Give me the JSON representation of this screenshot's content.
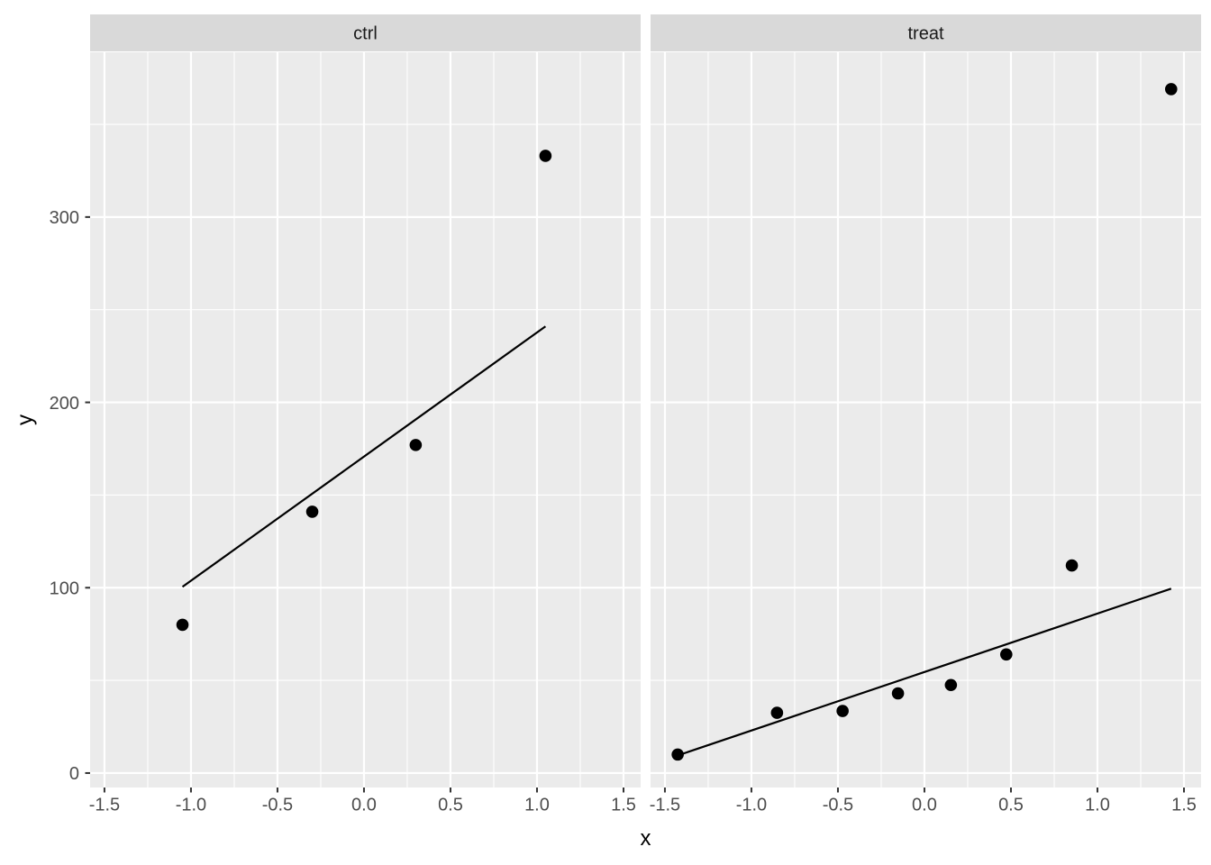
{
  "chart_data": {
    "type": "scatter",
    "title": "",
    "xlabel": "x",
    "ylabel": "y",
    "legend_position": "none",
    "grid": true,
    "x_tick_labels": [
      "-1.5",
      "-1.0",
      "-0.5",
      "0.0",
      "0.5",
      "1.0",
      "1.5"
    ],
    "x_tick_values": [
      -1.5,
      -1.0,
      -0.5,
      0.0,
      0.5,
      1.0,
      1.5
    ],
    "y_tick_labels": [
      "0",
      "100",
      "200",
      "300"
    ],
    "y_tick_values": [
      0,
      100,
      200,
      300
    ],
    "x_minor_values": [
      -1.25,
      -0.75,
      -0.25,
      0.25,
      0.75,
      1.25
    ],
    "y_minor_values": [
      50,
      150,
      250,
      350
    ],
    "xlim": [
      -1.583,
      1.599
    ],
    "ylim": [
      -7.8,
      388.9
    ],
    "facets": [
      {
        "label": "ctrl",
        "points": {
          "x": [
            -1.049,
            -0.299,
            0.299,
            1.049
          ],
          "y": [
            80,
            141,
            177,
            333
          ]
        },
        "qq_line": {
          "x1": -1.049,
          "y1": 100.5,
          "x2": 1.049,
          "y2": 241
        }
      },
      {
        "label": "treat",
        "points": {
          "x": [
            -1.426,
            -0.852,
            -0.473,
            -0.153,
            0.153,
            0.473,
            0.852,
            1.426
          ],
          "y": [
            10,
            32.5,
            33.5,
            43,
            47.5,
            64,
            112,
            369
          ]
        },
        "qq_line": {
          "x1": -1.426,
          "y1": 9.5,
          "x2": 1.426,
          "y2": 99.5
        }
      }
    ]
  },
  "colors": {
    "background": "#FFFFFF",
    "panel_background": "#EBEBEB",
    "strip_background": "#D9D9D9",
    "gridline": "#FFFFFF",
    "point": "#000000",
    "line": "#000000",
    "tick_mark": "#333333",
    "tick_text": "#4D4D4D",
    "strip_text": "#1A1A1A",
    "axis_title_text": "#000000"
  }
}
